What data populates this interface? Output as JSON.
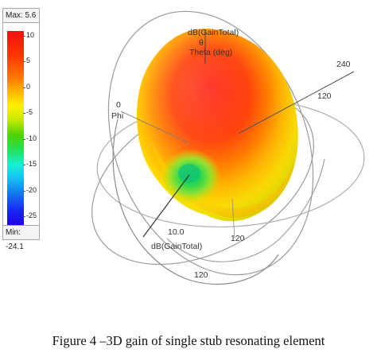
{
  "legend": {
    "max_label": "Max: 5.6",
    "min_label": "Min: -24.1",
    "ticks": [
      "10",
      "5",
      "0",
      "-5",
      "-10",
      "-15",
      "-20",
      "-25"
    ],
    "colors": [
      "#ee1111",
      "#ff7a00",
      "#fff000",
      "#4fd200",
      "#19f0d6",
      "#1476ee",
      "#1e00d8"
    ]
  },
  "plot": {
    "top_quantity": "dB(GainTotal)",
    "theta_label": "Theta (deg)",
    "theta_symbol": "θ",
    "phi_label": "Phi",
    "phi_zero": "0",
    "right_outer_tick": "240",
    "right_inner_tick": "120",
    "bottom_quantity": "dB(GainTotal)",
    "center_value": "10.0",
    "bottom_right_tick": "120",
    "bottom_tick": "120"
  },
  "caption": "Figure 4 –3D gain of single stub resonating element"
}
